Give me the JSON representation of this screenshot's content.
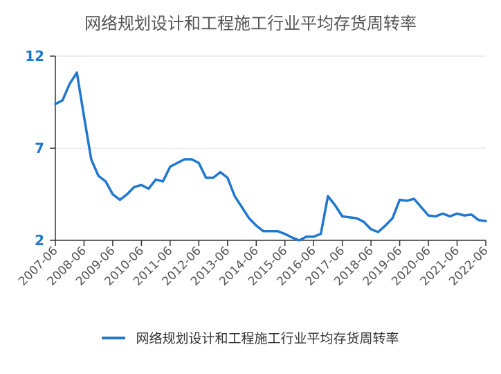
{
  "chart_data": {
    "type": "line",
    "title": "网络规划设计和工程施工行业平均存货周转率",
    "xlabel": "",
    "ylabel": "",
    "ylim": [
      2,
      12
    ],
    "yticks": [
      "2",
      "7",
      "12"
    ],
    "xticks": [
      "2007-06",
      "2008-06",
      "2009-06",
      "2010-06",
      "2011-06",
      "2012-06",
      "2013-06",
      "2014-06",
      "2015-06",
      "2016-06",
      "2017-06",
      "2018-06",
      "2019-06",
      "2020-06",
      "2021-06",
      "2022-06"
    ],
    "grid": true,
    "legend_position": "bottom",
    "color": "#1f77d0",
    "series": [
      {
        "name": "网络规划设计和工程施工行业平均存货周转率",
        "x": [
          "2007-06",
          "2007-09",
          "2007-12",
          "2008-03",
          "2008-06",
          "2008-09",
          "2008-12",
          "2009-03",
          "2009-06",
          "2009-09",
          "2009-12",
          "2010-03",
          "2010-06",
          "2010-09",
          "2010-12",
          "2011-03",
          "2011-06",
          "2011-09",
          "2011-12",
          "2012-03",
          "2012-06",
          "2012-09",
          "2012-12",
          "2013-03",
          "2013-06",
          "2013-09",
          "2013-12",
          "2014-03",
          "2014-06",
          "2014-09",
          "2014-12",
          "2015-03",
          "2015-06",
          "2015-09",
          "2015-12",
          "2016-03",
          "2016-06",
          "2016-09",
          "2016-12",
          "2017-03",
          "2017-06",
          "2017-09",
          "2017-12",
          "2018-03",
          "2018-06",
          "2018-09",
          "2018-12",
          "2019-03",
          "2019-06",
          "2019-09",
          "2019-12",
          "2020-03",
          "2020-06",
          "2020-09",
          "2020-12",
          "2021-03",
          "2021-06",
          "2021-09",
          "2021-12",
          "2022-03",
          "2022-06"
        ],
        "values": [
          9.4,
          9.6,
          10.5,
          11.1,
          8.7,
          6.4,
          5.5,
          5.2,
          4.5,
          4.2,
          4.5,
          4.9,
          5.0,
          4.8,
          5.3,
          5.2,
          6.0,
          6.2,
          6.4,
          6.4,
          6.2,
          5.4,
          5.4,
          5.7,
          5.4,
          4.4,
          3.8,
          3.2,
          2.8,
          2.5,
          2.5,
          2.5,
          2.35,
          2.15,
          2.0,
          2.2,
          2.2,
          2.35,
          4.4,
          3.9,
          3.3,
          3.25,
          3.2,
          3.0,
          2.6,
          2.45,
          2.8,
          3.2,
          4.2,
          4.15,
          4.25,
          3.8,
          3.35,
          3.3,
          3.45,
          3.3,
          3.45,
          3.35,
          3.4,
          3.1,
          3.05
        ]
      }
    ]
  }
}
